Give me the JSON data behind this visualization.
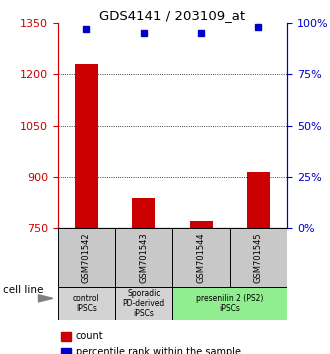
{
  "title": "GDS4141 / 203109_at",
  "samples": [
    "GSM701542",
    "GSM701543",
    "GSM701544",
    "GSM701545"
  ],
  "counts": [
    1230,
    840,
    770,
    915
  ],
  "percentiles": [
    97,
    95,
    95,
    98
  ],
  "ylim_left": [
    750,
    1350
  ],
  "ylim_right": [
    0,
    100
  ],
  "yticks_left": [
    750,
    900,
    1050,
    1200,
    1350
  ],
  "yticks_right": [
    0,
    25,
    50,
    75,
    100
  ],
  "bar_color": "#cc0000",
  "dot_color": "#0000cc",
  "bg_color": "#ffffff",
  "groups": [
    {
      "label": "control\nIPSCs",
      "start": 0,
      "end": 1,
      "color": "#d3d3d3"
    },
    {
      "label": "Sporadic\nPD-derived\niPSCs",
      "start": 1,
      "end": 2,
      "color": "#d3d3d3"
    },
    {
      "label": "presenilin 2 (PS2)\niPSCs",
      "start": 2,
      "end": 4,
      "color": "#90ee90"
    }
  ],
  "xlabel": "cell line",
  "legend_count_label": "count",
  "legend_pct_label": "percentile rank within the sample",
  "left_axis_color": "#cc0000",
  "right_axis_color": "#0000cc",
  "sample_box_color": "#c8c8c8",
  "bar_width": 0.4
}
